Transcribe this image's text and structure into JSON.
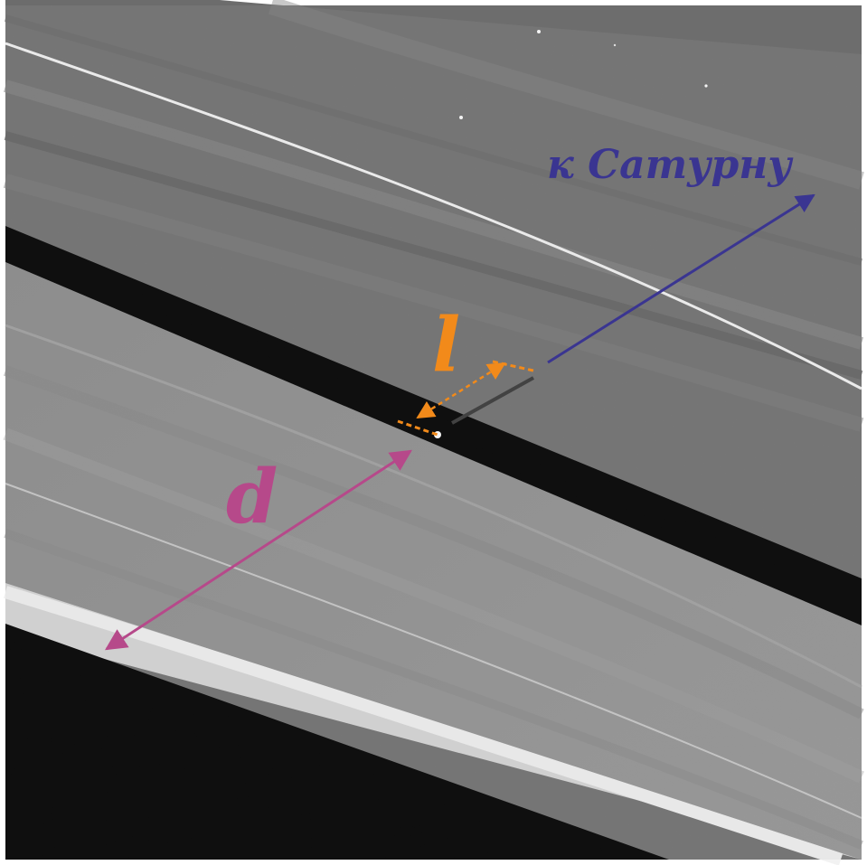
{
  "labels": {
    "saturn_direction": "к Сатурну",
    "moon_height": "l",
    "distance": "d"
  },
  "colors": {
    "saturn_arrow": "#3a3591",
    "moon_height": "#f28a1a",
    "distance": "#b6498a",
    "frame": "#ffffff"
  }
}
